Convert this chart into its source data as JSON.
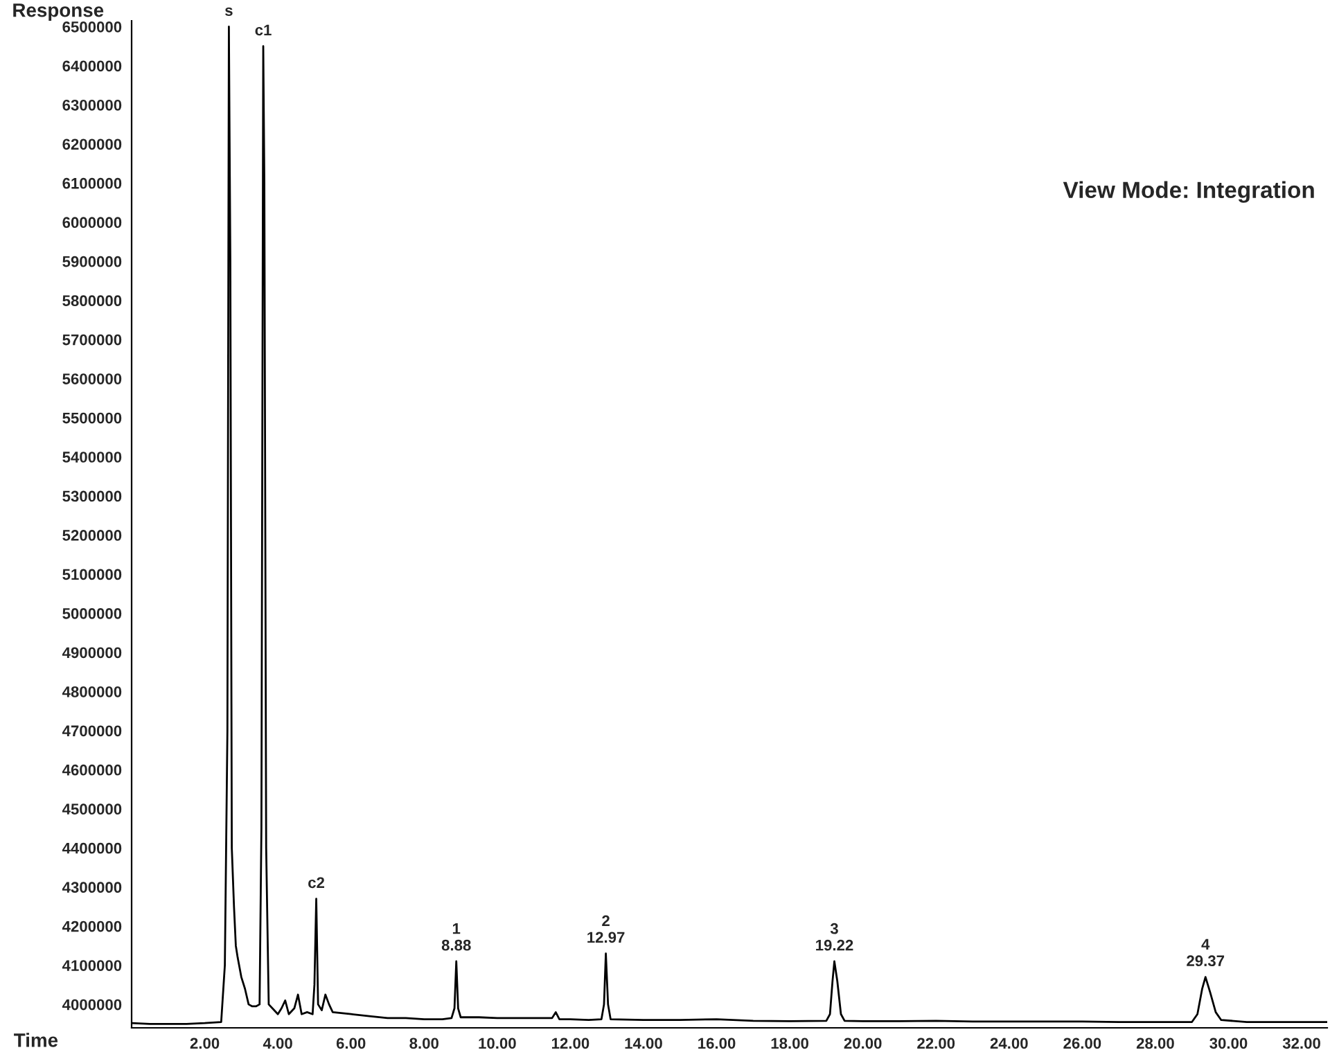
{
  "chart_data": {
    "type": "line",
    "xlabel": "Time",
    "ylabel": "Response",
    "grid": false,
    "legend": false,
    "marker": "none",
    "line_style": "solid",
    "xlim": [
      0,
      32.7
    ],
    "ylim": [
      3940000,
      6515000
    ],
    "xticks": [
      {
        "value": 2,
        "label": "2.00"
      },
      {
        "value": 4,
        "label": "4.00"
      },
      {
        "value": 6,
        "label": "6.00"
      },
      {
        "value": 8,
        "label": "8.00"
      },
      {
        "value": 10,
        "label": "10.00"
      },
      {
        "value": 12,
        "label": "12.00"
      },
      {
        "value": 14,
        "label": "14.00"
      },
      {
        "value": 16,
        "label": "16.00"
      },
      {
        "value": 18,
        "label": "18.00"
      },
      {
        "value": 20,
        "label": "20.00"
      },
      {
        "value": 22,
        "label": "22.00"
      },
      {
        "value": 24,
        "label": "24.00"
      },
      {
        "value": 26,
        "label": "26.00"
      },
      {
        "value": 28,
        "label": "28.00"
      },
      {
        "value": 30,
        "label": "30.00"
      },
      {
        "value": 32,
        "label": "32.00"
      }
    ],
    "yticks": [
      4000000,
      4100000,
      4200000,
      4300000,
      4400000,
      4500000,
      4600000,
      4700000,
      4800000,
      4900000,
      5000000,
      5100000,
      5200000,
      5300000,
      5400000,
      5500000,
      5600000,
      5700000,
      5800000,
      5900000,
      6000000,
      6100000,
      6200000,
      6300000,
      6400000,
      6500000
    ],
    "series": [
      {
        "color": "#000000",
        "x": [
          0.0,
          0.5,
          1.0,
          1.5,
          2.0,
          2.45,
          2.55,
          2.62,
          2.66,
          2.7,
          2.74,
          2.8,
          2.85,
          2.9,
          3.0,
          3.1,
          3.2,
          3.3,
          3.4,
          3.5,
          3.55,
          3.6,
          3.63,
          3.68,
          3.75,
          3.85,
          4.0,
          4.1,
          4.2,
          4.3,
          4.45,
          4.55,
          4.65,
          4.8,
          4.95,
          5.0,
          5.05,
          5.1,
          5.2,
          5.3,
          5.4,
          5.5,
          6.0,
          6.5,
          7.0,
          7.5,
          8.0,
          8.5,
          8.75,
          8.83,
          8.88,
          8.93,
          9.0,
          9.5,
          10.0,
          10.5,
          11.0,
          11.5,
          11.6,
          11.7,
          12.0,
          12.5,
          12.85,
          12.92,
          12.97,
          13.03,
          13.1,
          14.0,
          15.0,
          16.0,
          17.0,
          18.0,
          19.0,
          19.1,
          19.17,
          19.22,
          19.3,
          19.4,
          19.5,
          20.0,
          21.0,
          22.0,
          23.0,
          24.0,
          25.0,
          26.0,
          27.0,
          28.0,
          29.0,
          29.15,
          29.28,
          29.37,
          29.5,
          29.65,
          29.8,
          30.5,
          31.5,
          32.7
        ],
        "values": [
          3952000,
          3950000,
          3950000,
          3950000,
          3952000,
          3955000,
          4100000,
          4700000,
          6500000,
          5900000,
          4400000,
          4250000,
          4150000,
          4120000,
          4070000,
          4040000,
          4000000,
          3995000,
          3995000,
          4000000,
          4450000,
          6450000,
          6100000,
          4400000,
          4000000,
          3990000,
          3975000,
          3990000,
          4010000,
          3975000,
          3990000,
          4025000,
          3975000,
          3980000,
          3975000,
          4050000,
          4270000,
          4000000,
          3985000,
          4025000,
          4000000,
          3980000,
          3975000,
          3970000,
          3965000,
          3965000,
          3962000,
          3962000,
          3965000,
          3990000,
          4110000,
          3990000,
          3967000,
          3967000,
          3965000,
          3965000,
          3965000,
          3965000,
          3980000,
          3962000,
          3962000,
          3960000,
          3962000,
          4000000,
          4130000,
          4000000,
          3962000,
          3960000,
          3960000,
          3962000,
          3958000,
          3957000,
          3958000,
          3975000,
          4060000,
          4110000,
          4060000,
          3975000,
          3958000,
          3957000,
          3957000,
          3958000,
          3956000,
          3956000,
          3956000,
          3956000,
          3955000,
          3955000,
          3955000,
          3975000,
          4040000,
          4070000,
          4030000,
          3980000,
          3960000,
          3955000,
          3955000,
          3955000
        ]
      }
    ],
    "annotations": [
      {
        "text": "s",
        "x": 2.66,
        "y": 6500000
      },
      {
        "text": "c1",
        "x": 3.6,
        "y": 6450000
      },
      {
        "text": "c2",
        "x": 5.05,
        "y": 4270000
      },
      {
        "text": "1\n8.88",
        "x": 8.88,
        "y": 4110000
      },
      {
        "text": "2\n12.97",
        "x": 12.97,
        "y": 4130000
      },
      {
        "text": "3\n19.22",
        "x": 19.22,
        "y": 4110000
      },
      {
        "text": "4\n29.37",
        "x": 29.37,
        "y": 4070000
      },
      "View Mode: Integration"
    ]
  }
}
